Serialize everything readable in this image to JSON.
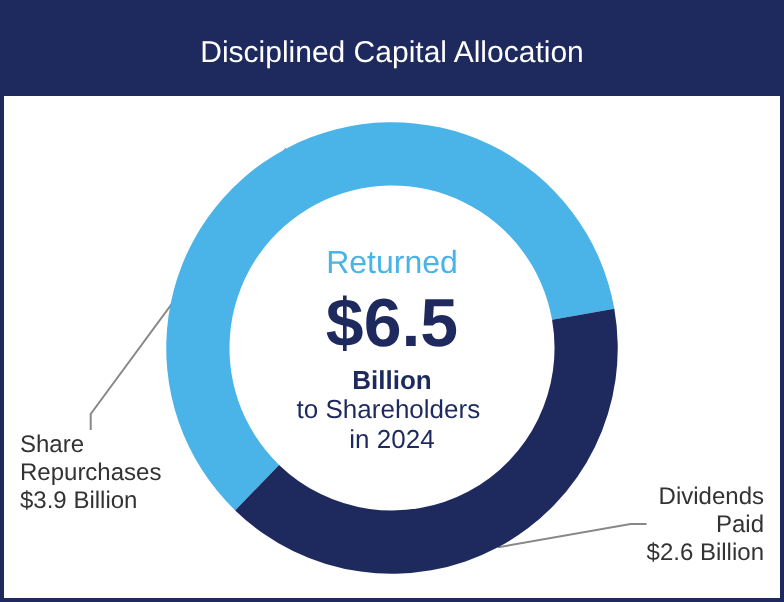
{
  "chart_data": {
    "type": "donut",
    "title": "Disciplined Capital Allocation",
    "categories": [
      "Share Repurchases",
      "Dividends Paid"
    ],
    "values": [
      3.9,
      2.6
    ],
    "colors": [
      "#4ab3e8",
      "#1e2a5e"
    ],
    "value_labels": [
      "$3.9 Billion",
      "$2.6 Billion"
    ],
    "annotations": [
      "Returned",
      "$6.5",
      "Billion",
      "to Shareholders in 2024"
    ],
    "legend": false
  }
}
